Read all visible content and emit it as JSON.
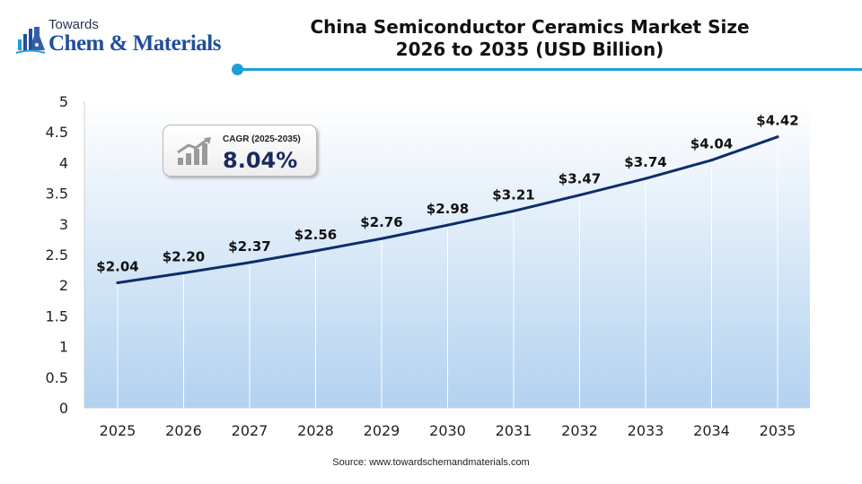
{
  "logo": {
    "line1": "Towards",
    "line2": "Chem & Materials"
  },
  "header": {
    "title_line1": "China Semiconductor Ceramics Market Size",
    "title_line2": "2026 to 2035 (USD Billion)"
  },
  "cagr": {
    "label": "CAGR (2025-2035)",
    "value": "8.04%"
  },
  "colors": {
    "line": "#0d2d6b",
    "accent": "#1e9ed8",
    "area_top": "#ffffff",
    "area_bottom": "#a9cdee"
  },
  "chart_data": {
    "type": "area",
    "x": [
      "2025",
      "2026",
      "2027",
      "2028",
      "2029",
      "2030",
      "2031",
      "2032",
      "2033",
      "2034",
      "2035"
    ],
    "series": [
      {
        "values": [
          2.04,
          2.2,
          2.37,
          2.56,
          2.76,
          2.98,
          3.21,
          3.47,
          3.74,
          4.04,
          4.42
        ],
        "labels": [
          "$2.04",
          "$2.20",
          "$2.37",
          "$2.56",
          "$2.76",
          "$2.98",
          "$3.21",
          "$3.47",
          "$3.74",
          "$4.04",
          "$4.42"
        ]
      }
    ],
    "y_ticks": [
      "0",
      "0.5",
      "1",
      "1.5",
      "2",
      "2.5",
      "3",
      "3.5",
      "4",
      "4.5",
      "5"
    ],
    "ylim": [
      0,
      5
    ],
    "grid": "vertical"
  },
  "source": "Source:  www.towardschemandmaterials.com"
}
